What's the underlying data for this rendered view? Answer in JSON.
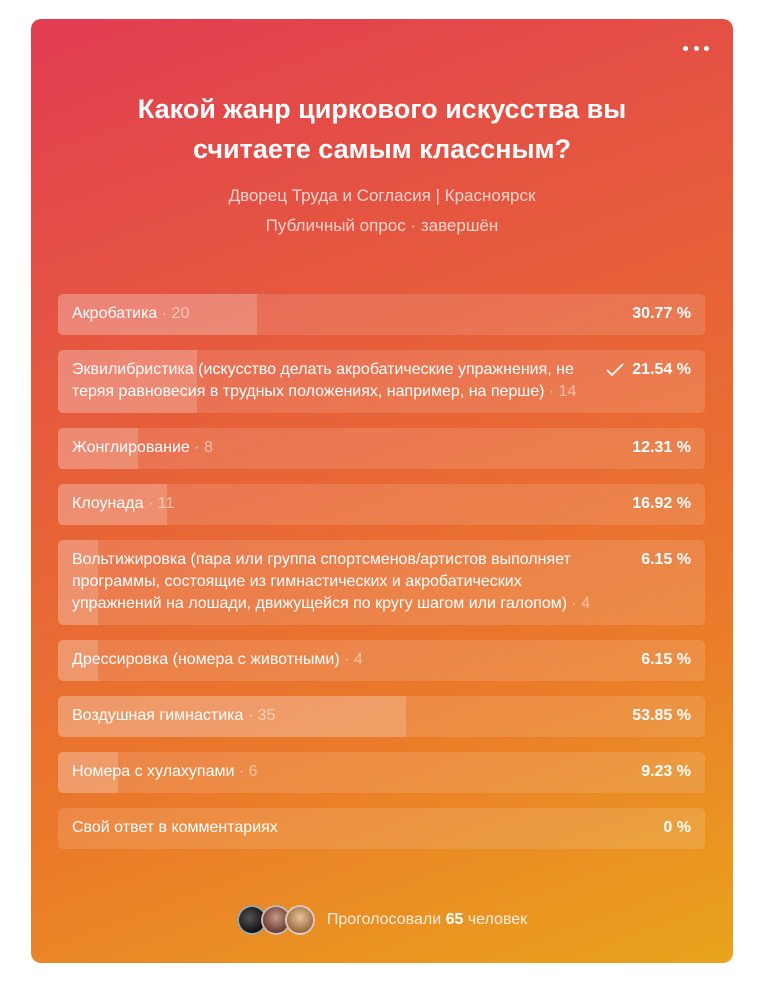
{
  "poll": {
    "title": "Какой жанр циркового искусства вы считаете самым классным?",
    "subtitle": "Дворец Труда и Согласия | Красноярск",
    "status": "Публичный опрос · завершён",
    "options": [
      {
        "label": "Акробатика",
        "count": "· 20",
        "percent": "30.77 %",
        "share": 30.77,
        "checked": false
      },
      {
        "label": "Эквилибристика (искусство делать акробатические упражнения, не теряя равновесия в трудных положениях, например, на перше)",
        "count": "· 14",
        "percent": "21.54 %",
        "share": 21.54,
        "checked": true
      },
      {
        "label": "Жонглирование",
        "count": "· 8",
        "percent": "12.31 %",
        "share": 12.31,
        "checked": false
      },
      {
        "label": "Клоунада",
        "count": "· 11",
        "percent": "16.92 %",
        "share": 16.92,
        "checked": false
      },
      {
        "label": "Вольтижировка (пара или группа спортсменов/артистов выполняет программы, состоящие из гимнастических и акробатических упражнений на лошади, движущейся по кругу шагом или галопом)",
        "count": "· 4",
        "percent": "6.15 %",
        "share": 6.15,
        "checked": false
      },
      {
        "label": "Дрессировка (номера с животными)",
        "count": "· 4",
        "percent": "6.15 %",
        "share": 6.15,
        "checked": false
      },
      {
        "label": "Воздушная гимнастика",
        "count": "· 35",
        "percent": "53.85 %",
        "share": 53.85,
        "checked": false
      },
      {
        "label": "Номера с хулахупами",
        "count": "· 6",
        "percent": "9.23 %",
        "share": 9.23,
        "checked": false
      },
      {
        "label": "Свой ответ в комментариях",
        "count": "",
        "percent": "0 %",
        "share": 0,
        "checked": false
      }
    ],
    "footer": {
      "prefix": "Проголосовали",
      "total": "65",
      "suffix": "человек"
    }
  },
  "icons": {
    "menu": "more-horizontal-icon",
    "check": "check-icon"
  }
}
